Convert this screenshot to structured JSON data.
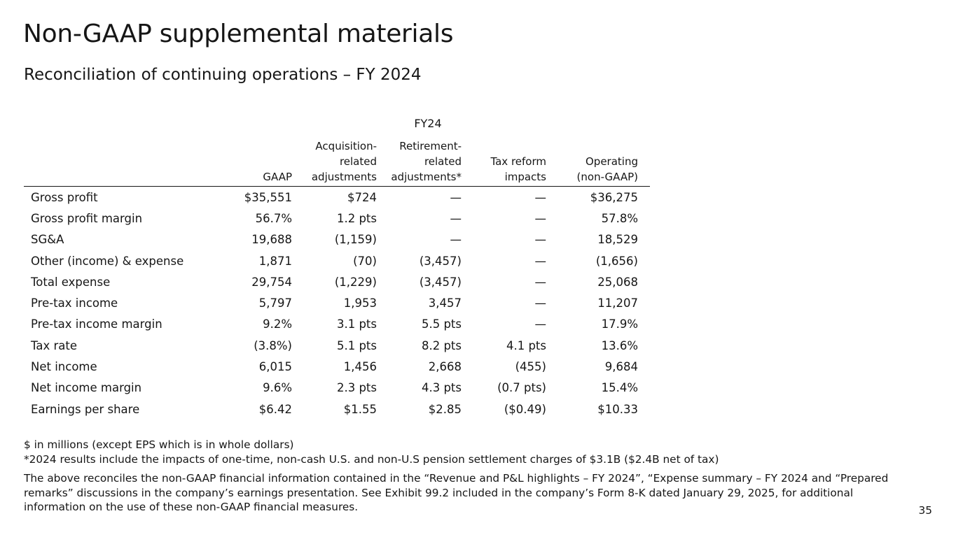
{
  "title": "Non-GAAP supplemental materials",
  "subtitle": "Reconciliation of continuing operations – FY 2024",
  "table": {
    "period": "FY24",
    "columns": [
      {
        "lines": [
          "GAAP"
        ]
      },
      {
        "lines": [
          "Acquisition-",
          "related",
          "adjustments"
        ]
      },
      {
        "lines": [
          "Retirement-",
          "related",
          "adjustments*"
        ]
      },
      {
        "lines": [
          "Tax reform",
          "impacts"
        ]
      },
      {
        "lines": [
          "Operating",
          "(non-GAAP)"
        ]
      }
    ],
    "rows": [
      {
        "label": "Gross profit",
        "values": [
          "$35,551",
          "$724",
          "—",
          "—",
          "$36,275"
        ]
      },
      {
        "label": "Gross profit margin",
        "values": [
          "56.7%",
          "1.2 pts",
          "—",
          "—",
          "57.8%"
        ]
      },
      {
        "label": "SG&A",
        "values": [
          "19,688",
          "(1,159)",
          "—",
          "—",
          "18,529"
        ]
      },
      {
        "label": "Other (income) & expense",
        "values": [
          "1,871",
          "(70)",
          "(3,457)",
          "—",
          "(1,656)"
        ]
      },
      {
        "label": "Total expense",
        "values": [
          "29,754",
          "(1,229)",
          "(3,457)",
          "—",
          "25,068"
        ]
      },
      {
        "label": "Pre-tax income",
        "values": [
          "5,797",
          "1,953",
          "3,457",
          "—",
          "11,207"
        ]
      },
      {
        "label": "Pre-tax income margin",
        "values": [
          "9.2%",
          "3.1 pts",
          "5.5 pts",
          "—",
          "17.9%"
        ]
      },
      {
        "label": "Tax rate",
        "values": [
          "(3.8%)",
          "5.1 pts",
          "8.2 pts",
          "4.1 pts",
          "13.6%"
        ]
      },
      {
        "label": "Net income",
        "values": [
          "6,015",
          "1,456",
          "2,668",
          "(455)",
          "9,684"
        ]
      },
      {
        "label": "Net income margin",
        "values": [
          "9.6%",
          "2.3 pts",
          "4.3 pts",
          "(0.7 pts)",
          "15.4%"
        ]
      },
      {
        "label": "Earnings per share",
        "values": [
          "$6.42",
          "$1.55",
          "$2.85",
          "($0.49)",
          "$10.33"
        ]
      }
    ]
  },
  "notes": {
    "units": "$ in millions (except EPS which is in whole dollars)",
    "footnote": "*2024 results include the impacts of one-time, non-cash U.S. and non-U.S pension settlement charges of $3.1B ($2.4B net of tax)",
    "reconciliation": "The above reconciles the non-GAAP financial information contained in the “Revenue and P&L highlights – FY  2024”, “Expense summary – FY 2024 and “Prepared remarks” discussions in the company’s earnings presentation. See Exhibit 99.2 included in the company’s Form 8-K dated January 29, 2025, for additional information on the use of these non-GAAP financial measures."
  },
  "page_number": "35"
}
